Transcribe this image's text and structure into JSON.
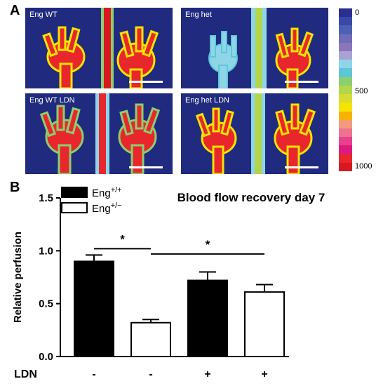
{
  "panel_a": {
    "letter": "A",
    "images": [
      {
        "label": "Eng WT"
      },
      {
        "label": "Eng het"
      },
      {
        "label": "Eng WT LDN"
      },
      {
        "label": "Eng het LDN"
      }
    ],
    "colorbar": {
      "ticks": [
        "0",
        "500",
        "1000"
      ],
      "colors": [
        "#2b2f8e",
        "#3a49a8",
        "#4d61b4",
        "#6f6cb8",
        "#8b76bb",
        "#a8a3d3",
        "#8ed5e8",
        "#5fc6d9",
        "#8bcf6e",
        "#b4d64a",
        "#d7dc33",
        "#f4e400",
        "#f7b200",
        "#f49b7b",
        "#ef7391",
        "#e6408f",
        "#e01a7b",
        "#e8272d",
        "#d7191f"
      ]
    }
  },
  "panel_b": {
    "letter": "B",
    "chart_data": {
      "type": "bar",
      "title": "Blood flow recovery day 7",
      "ylabel": "Relative perfusion",
      "ylim": [
        0,
        1.5
      ],
      "yticks": [
        "0.0",
        "0.5",
        "1.0",
        "1.5"
      ],
      "legend": [
        {
          "base": "Eng",
          "sup": "+/+",
          "fill": "#000000"
        },
        {
          "base": "Eng",
          "sup": "+/−",
          "fill": "#ffffff"
        }
      ],
      "categories_label": "LDN",
      "categories": [
        "-",
        "-",
        "+",
        "+"
      ],
      "bars": [
        {
          "value": 0.9,
          "error": 0.06,
          "fill": "#000000"
        },
        {
          "value": 0.32,
          "error": 0.03,
          "fill": "#ffffff"
        },
        {
          "value": 0.72,
          "error": 0.08,
          "fill": "#000000"
        },
        {
          "value": 0.61,
          "error": 0.07,
          "fill": "#ffffff"
        }
      ],
      "significance": [
        {
          "from": 0,
          "to": 1,
          "label": "*"
        },
        {
          "from": 1,
          "to": 3,
          "label": "*"
        }
      ]
    }
  }
}
